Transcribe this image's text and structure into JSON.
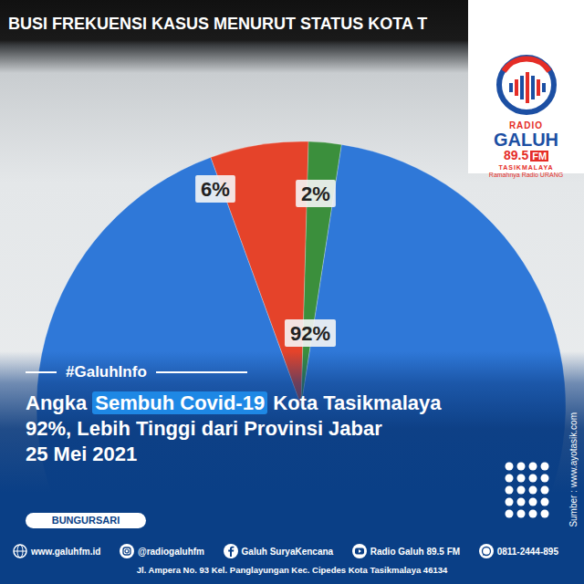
{
  "chart_data": {
    "type": "pie",
    "title": "BUSI FREKUENSI KASUS MENURUT STATUS KOTA T",
    "categories": [
      null,
      null,
      null
    ],
    "values": [
      6,
      2,
      92
    ],
    "value_labels": [
      "6%",
      "2%",
      "92%"
    ],
    "colors": [
      "#e5432a",
      "#3b8f3c",
      "#2f78d8"
    ],
    "data_labels": true
  },
  "logo": {
    "top": "RADIO",
    "name": "GALUH",
    "frequency": "89.5",
    "band": "FM",
    "city": "TASIKMALAYA",
    "slogan": "Ramahnya Radio URANG"
  },
  "tag": "#GaluhInfo",
  "headline": {
    "lines": [
      "Angka Sembuh Covid-19 Kota Tasikmalaya",
      "92%, Lebih Tinggi dari Provinsi Jabar",
      "25 Mei 2021"
    ],
    "highlight": "Sembuh Covid-19"
  },
  "location": "BUNGURSARI",
  "source": "Sumber : www.ayotasik.com",
  "footer": {
    "links": [
      "www.galuhfm.id",
      "@radiogaluhfm",
      "Galuh SuryaKencana",
      "Radio Galuh 89.5 FM",
      "0811-2444-895"
    ],
    "address": "Jl. Ampera No. 93 Kel. Panglayungan Kec. Cipedes Kota Tasikmalaya 46134"
  }
}
